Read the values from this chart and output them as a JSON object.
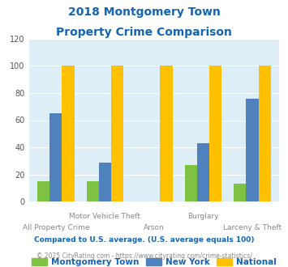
{
  "title_line1": "2018 Montgomery Town",
  "title_line2": "Property Crime Comparison",
  "categories": [
    "All Property Crime",
    "Motor Vehicle Theft",
    "Arson",
    "Burglary",
    "Larceny & Theft"
  ],
  "montgomery": [
    15,
    15,
    0,
    27,
    13
  ],
  "new_york": [
    65,
    29,
    0,
    43,
    76
  ],
  "national": [
    100,
    100,
    100,
    100,
    100
  ],
  "color_montgomery": "#7dc242",
  "color_new_york": "#4f81bd",
  "color_national": "#ffc000",
  "ylim": [
    0,
    120
  ],
  "yticks": [
    0,
    20,
    40,
    60,
    80,
    100,
    120
  ],
  "background_plot": "#ddeef6",
  "background_fig": "#ffffff",
  "title_color": "#1464b4",
  "label_color": "#888888",
  "footnote1": "Compared to U.S. average. (U.S. average equals 100)",
  "footnote2": "© 2025 CityRating.com - https://www.cityrating.com/crime-statistics/",
  "footnote1_color": "#1464b4",
  "footnote2_color": "#888888",
  "legend_labels": [
    "Montgomery Town",
    "New York",
    "National"
  ],
  "legend_color": "#1464b4",
  "bar_width": 0.25,
  "group_positions": [
    0,
    1,
    2,
    3,
    4
  ],
  "x_label_top": [
    "",
    "Motor Vehicle Theft",
    "",
    "Burglary",
    ""
  ],
  "x_label_bottom": [
    "All Property Crime",
    "",
    "Arson",
    "",
    "Larceny & Theft"
  ]
}
